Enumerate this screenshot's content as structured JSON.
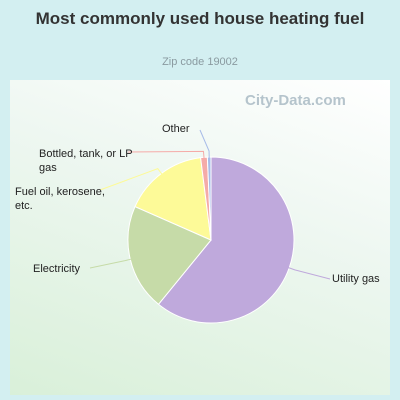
{
  "chart_data": {
    "type": "pie",
    "title": "Most commonly used house heating fuel",
    "subtitle": "Zip code 19002",
    "watermark": "City-Data.com",
    "categories": [
      "Utility gas",
      "Electricity",
      "Fuel oil, kerosene, etc.",
      "Bottled, tank, or LP gas",
      "Other"
    ],
    "values": [
      60.9,
      20.7,
      16.4,
      1.3,
      0.7
    ],
    "colors": [
      "#bfa9dc",
      "#c6dba8",
      "#fdfa98",
      "#f5aba8",
      "#a8bce8"
    ]
  }
}
